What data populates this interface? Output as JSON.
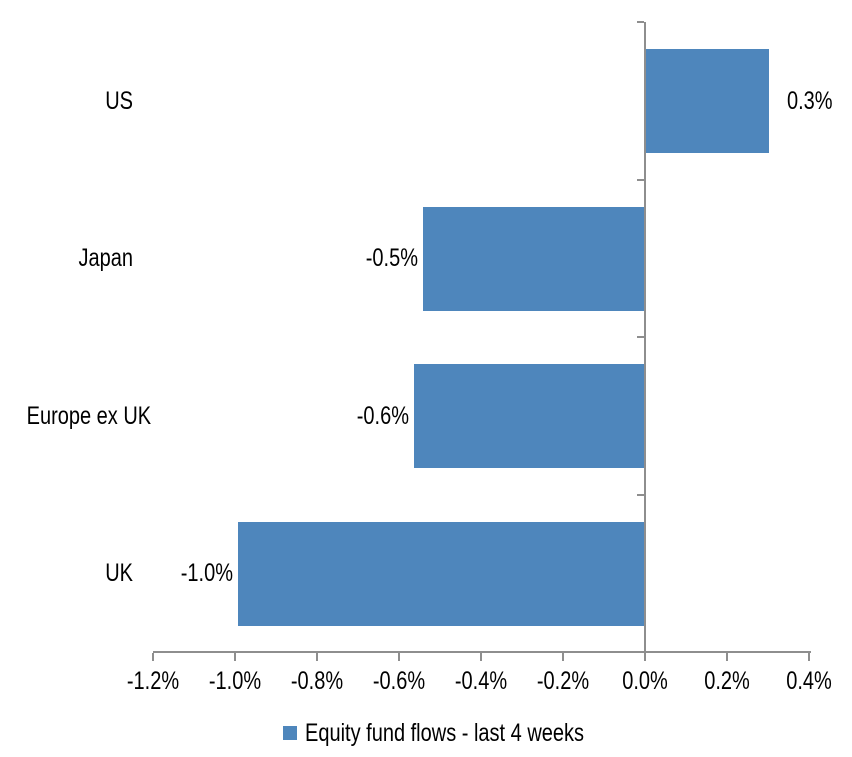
{
  "chart_data": {
    "type": "bar",
    "orientation": "horizontal",
    "title": "",
    "xlabel": "",
    "ylabel": "",
    "categories": [
      "US",
      "Japan",
      "Europe ex UK",
      "UK"
    ],
    "series": [
      {
        "name": "Equity fund flows - last 4 weeks",
        "values": [
          0.3,
          -0.54,
          -0.56,
          -0.99
        ],
        "value_labels": [
          "0.3%",
          "-0.5%",
          "-0.6%",
          "-1.0%"
        ]
      }
    ],
    "xlim": [
      -1.2,
      0.4
    ],
    "x_ticks": [
      -1.2,
      -1.0,
      -0.8,
      -0.6,
      -0.4,
      -0.2,
      0.0,
      0.2,
      0.4
    ],
    "x_tick_labels": [
      "-1.2%",
      "-1.0%",
      "-0.8%",
      "-0.6%",
      "-0.4%",
      "-0.2%",
      "0.0%",
      "0.2%",
      "0.4%"
    ],
    "grid": false,
    "legend_position": "bottom",
    "colors": {
      "bar": "#4e86bc",
      "axis": "#8e8e8e",
      "text": "#000000",
      "background": "#ffffff"
    }
  },
  "legend": {
    "label": "Equity fund flows - last 4 weeks"
  }
}
